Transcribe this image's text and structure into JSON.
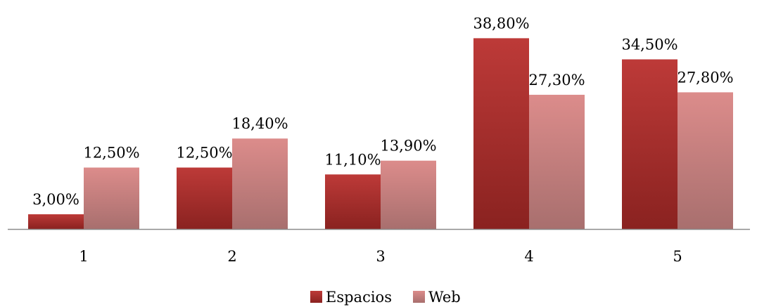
{
  "chart_data": {
    "type": "bar",
    "categories": [
      "1",
      "2",
      "3",
      "4",
      "5"
    ],
    "series": [
      {
        "name": "Espacios",
        "values": [
          3.0,
          12.5,
          11.1,
          38.8,
          34.5
        ],
        "labels": [
          "3,00%",
          "12,50%",
          "11,10%",
          "38,80%",
          "34,50%"
        ],
        "color_top": "#bd3a38",
        "color_bottom": "#8a2220"
      },
      {
        "name": "Web",
        "values": [
          12.5,
          18.4,
          13.9,
          27.3,
          27.8
        ],
        "labels": [
          "12,50%",
          "18,40%",
          "13,90%",
          "27,30%",
          "27,80%"
        ],
        "color_top": "#dc8c8b",
        "color_bottom": "#a86f6e"
      }
    ],
    "ylim": [
      0,
      40
    ],
    "grid": false,
    "legend_position": "bottom-center",
    "axis_color": "#8c8c8c"
  }
}
